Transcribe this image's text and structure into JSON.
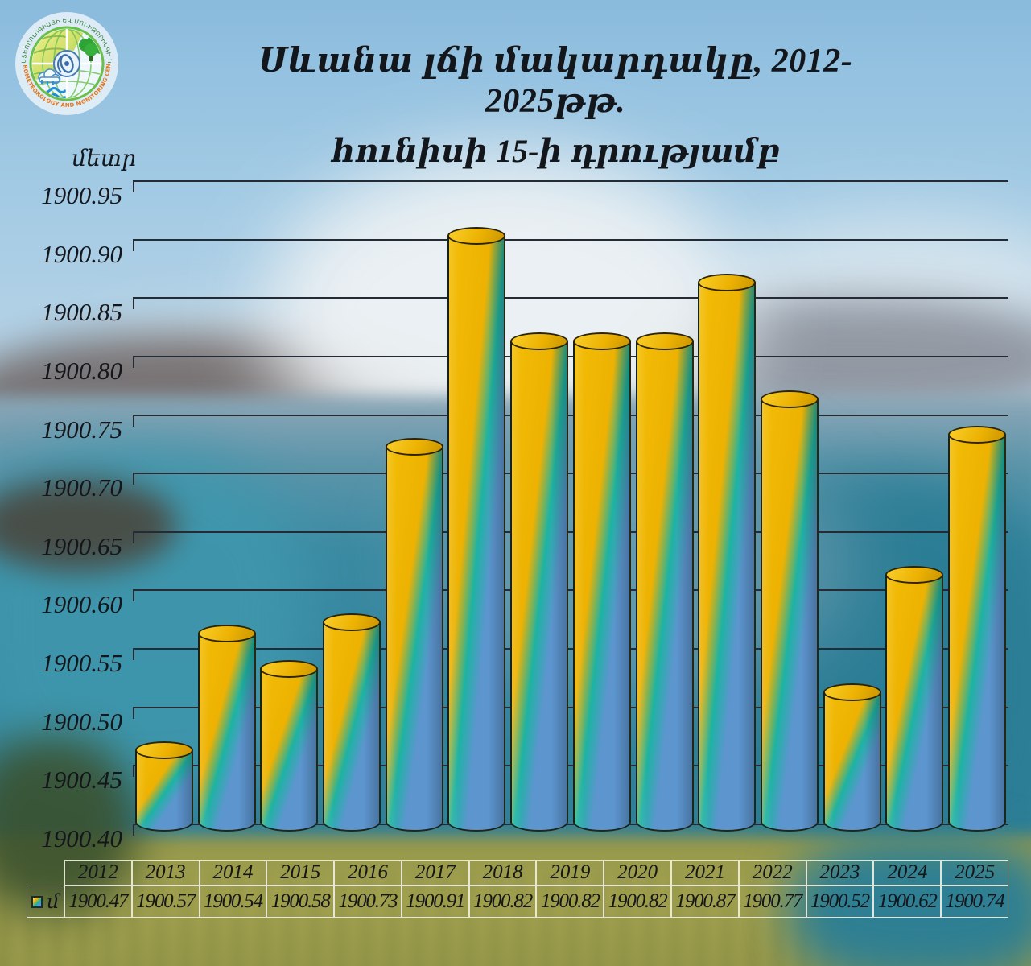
{
  "header": {
    "title_line1": "Սևանա լճի մակարդակը, 2012-2025թթ.",
    "title_line2": "հունիսի 15-ի դրությամբ"
  },
  "logo": {
    "arc_text_top": "ՀԻԴՐՈՄԵՏԵՈՐՈԼՈԳԻԱՅԻ ԵՎ ՄՈՆԻԹՈՐԻՆԳԻ ԿԵՆՏՐՈՆ",
    "arc_text_bottom": "\"HYDROMETEOROLOGY AND MONITORING CENTER\""
  },
  "y_axis": {
    "unit_label": "մետր"
  },
  "chart_data": {
    "type": "bar",
    "title": "Սևանա լճի մակարդակը, 2012-2025թթ. հունիսի 15-ի դրությամբ",
    "categories": [
      "2012",
      "2013",
      "2014",
      "2015",
      "2016",
      "2017",
      "2018",
      "2019",
      "2020",
      "2021",
      "2022",
      "2023",
      "2024",
      "2025"
    ],
    "values": [
      1900.47,
      1900.57,
      1900.54,
      1900.58,
      1900.73,
      1900.91,
      1900.82,
      1900.82,
      1900.82,
      1900.87,
      1900.77,
      1900.52,
      1900.62,
      1900.74
    ],
    "series_label": "մ",
    "ylabel": "մետր",
    "ylim": [
      1900.4,
      1900.95
    ],
    "ytick_step": 0.05,
    "ytick_labels": [
      "1900.95",
      "1900.90",
      "1900.85",
      "1900.80",
      "1900.75",
      "1900.70",
      "1900.65",
      "1900.60",
      "1900.55",
      "1900.50",
      "1900.45",
      "1900.40"
    ],
    "grid": true,
    "legend_position": "table-left",
    "bar_style": "3d-cylinder"
  },
  "table": {
    "legend_label": "մ",
    "years": [
      "2012",
      "2013",
      "2014",
      "2015",
      "2016",
      "2017",
      "2018",
      "2019",
      "2020",
      "2021",
      "2022",
      "2023",
      "2024",
      "2025"
    ],
    "values": [
      "1900.47",
      "1900.57",
      "1900.54",
      "1900.58",
      "1900.73",
      "1900.91",
      "1900.82",
      "1900.82",
      "1900.82",
      "1900.87",
      "1900.77",
      "1900.52",
      "1900.62",
      "1900.74"
    ]
  },
  "colors": {
    "bar_gold": "#edb202",
    "bar_gold_light": "#f3bd05",
    "bar_teal": "#1db3a3",
    "bar_blue": "#5d95cf",
    "grid_line": "#242b34",
    "table_border": "rgba(238,238,224,0.92)",
    "title_text": "#13161b"
  }
}
